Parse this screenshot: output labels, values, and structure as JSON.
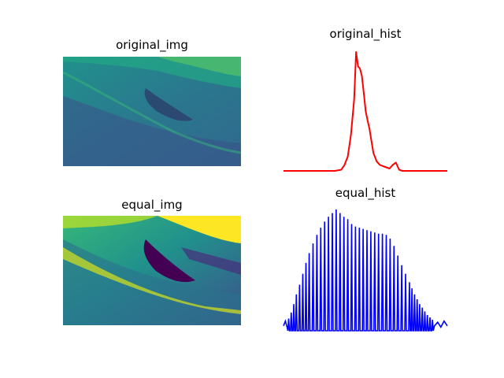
{
  "figure": {
    "panels": {
      "original_img": {
        "title": "original_img",
        "colormap": "viridis"
      },
      "original_hist": {
        "title": "original_hist"
      },
      "equal_img": {
        "title": "equal_img",
        "colormap": "viridis"
      },
      "equal_hist": {
        "title": "equal_hist"
      }
    }
  },
  "chart_data": [
    {
      "type": "heatmap",
      "title": "original_img",
      "colormap": "viridis",
      "axes_visible": false,
      "description_visible": "hillside grayscale photo rendered with narrow mid-range intensities"
    },
    {
      "type": "line",
      "title": "original_hist",
      "color": "#ff0000",
      "axes_visible": false,
      "x": [
        0,
        20,
        40,
        60,
        80,
        90,
        95,
        100,
        105,
        110,
        113,
        116,
        119,
        122,
        125,
        128,
        131,
        134,
        137,
        140,
        145,
        150,
        155,
        160,
        165,
        170,
        175,
        180,
        185,
        190,
        200,
        220,
        240,
        255
      ],
      "y": [
        0,
        0,
        0,
        0,
        0,
        0.01,
        0.05,
        0.12,
        0.3,
        0.6,
        1.0,
        0.88,
        0.86,
        0.8,
        0.65,
        0.5,
        0.42,
        0.35,
        0.25,
        0.15,
        0.08,
        0.05,
        0.04,
        0.03,
        0.02,
        0.05,
        0.07,
        0.01,
        0,
        0,
        0,
        0,
        0,
        0
      ]
    },
    {
      "type": "heatmap",
      "title": "equal_img",
      "colormap": "viridis",
      "axes_visible": false,
      "description_visible": "histogram-equalized version of the same hillside image"
    },
    {
      "type": "line",
      "title": "equal_hist",
      "color": "#0000ff",
      "axes_visible": false,
      "spikes": {
        "x": [
          8,
          12,
          16,
          20,
          25,
          30,
          35,
          40,
          46,
          52,
          58,
          64,
          70,
          76,
          82,
          88,
          94,
          100,
          106,
          112,
          118,
          124,
          130,
          136,
          142,
          148,
          154,
          160,
          166,
          172,
          178,
          184,
          190,
          196,
          200,
          204,
          208,
          212,
          216,
          220,
          224,
          228,
          232
        ],
        "y": [
          0.1,
          0.15,
          0.22,
          0.3,
          0.38,
          0.47,
          0.56,
          0.64,
          0.72,
          0.79,
          0.85,
          0.9,
          0.94,
          0.97,
          1.0,
          0.97,
          0.94,
          0.92,
          0.88,
          0.86,
          0.85,
          0.84,
          0.83,
          0.82,
          0.81,
          0.8,
          0.8,
          0.79,
          0.76,
          0.7,
          0.62,
          0.54,
          0.47,
          0.4,
          0.35,
          0.3,
          0.26,
          0.22,
          0.19,
          0.16,
          0.13,
          0.11,
          0.09
        ]
      },
      "x_range": [
        0,
        255
      ],
      "tail": {
        "x": [
          235,
          240,
          245,
          250,
          255
        ],
        "y": [
          0.04,
          0.07,
          0.03,
          0.08,
          0.04
        ]
      },
      "head": {
        "x": [
          0,
          3,
          6
        ],
        "y": [
          0.04,
          0.08,
          0.02
        ]
      }
    }
  ]
}
